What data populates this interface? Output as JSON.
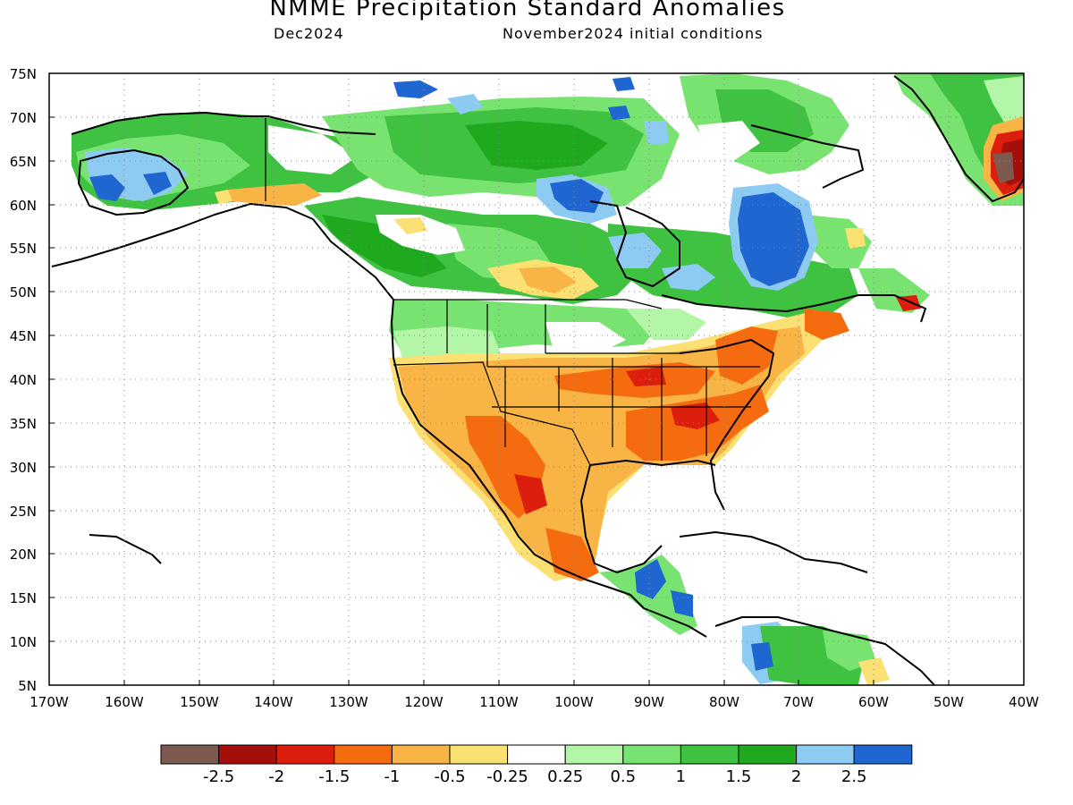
{
  "header": {
    "title": "NMME Precipitation Standard Anomalies",
    "valid_month": "Dec2024",
    "initial_conditions": "November2024 initial conditions"
  },
  "axes": {
    "lat_ticks": [
      "75N",
      "70N",
      "65N",
      "60N",
      "55N",
      "50N",
      "45N",
      "40N",
      "35N",
      "30N",
      "25N",
      "20N",
      "15N",
      "10N",
      "5N"
    ],
    "lon_ticks": [
      "170W",
      "160W",
      "150W",
      "140W",
      "130W",
      "120W",
      "110W",
      "100W",
      "90W",
      "80W",
      "70W",
      "60W",
      "50W",
      "40W"
    ],
    "lat_range": [
      5,
      75
    ],
    "lon_range": [
      -170,
      -40
    ],
    "grid": "dotted"
  },
  "colorbar": {
    "colors": [
      "#7d5a4e",
      "#a50f0b",
      "#dc1e0c",
      "#f56b10",
      "#f9b446",
      "#fbe074",
      "#ffffff",
      "#b4f6a8",
      "#78e371",
      "#3fc241",
      "#1ea91e",
      "#8ecbf2",
      "#1f66d1"
    ],
    "labels": [
      "-2.5",
      "-2",
      "-1.5",
      "-1",
      "-0.5",
      "-0.25",
      "0.25",
      "0.5",
      "1",
      "1.5",
      "2",
      "2.5"
    ]
  },
  "anomaly_regions": [
    {
      "name": "Alaska west",
      "level": 1.5
    },
    {
      "name": "Alaska southwest",
      "level": 2.5
    },
    {
      "name": "Canadian Arctic",
      "level": 1.0
    },
    {
      "name": "Hudson Bay west",
      "level": 2.5
    },
    {
      "name": "Quebec",
      "level": 2.5
    },
    {
      "name": "Greenland east coast",
      "level": -2.5
    },
    {
      "name": "Southern Plains",
      "level": -1.0
    },
    {
      "name": "Southeast US",
      "level": -1.5
    },
    {
      "name": "Northern Mexico",
      "level": -1.5
    },
    {
      "name": "Central America",
      "level": 2.5
    },
    {
      "name": "Northern South America",
      "level": 2.0
    }
  ]
}
